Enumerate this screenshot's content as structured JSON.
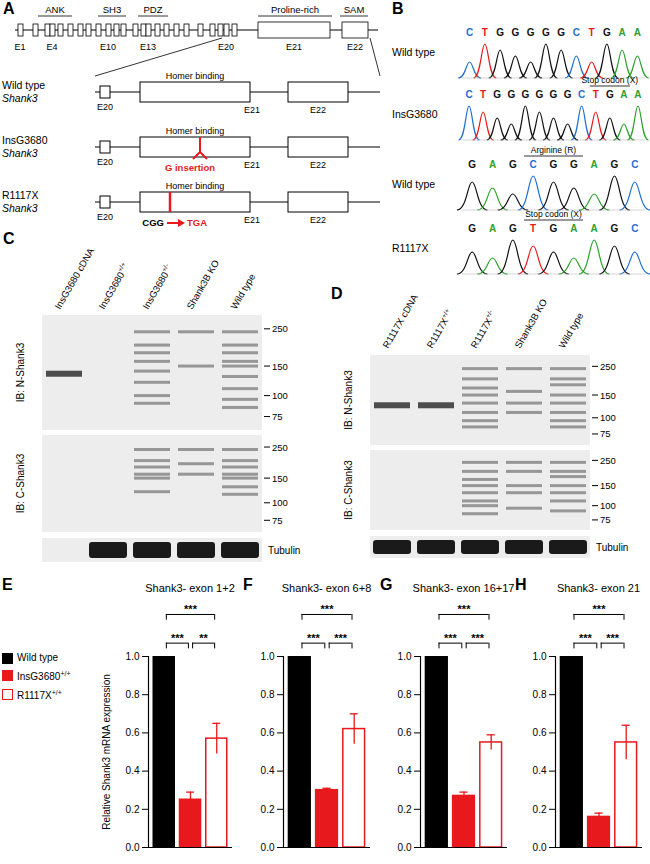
{
  "figure": {
    "A": {
      "letter": "A",
      "domains": [
        "ANK",
        "SH3",
        "PDZ",
        "Proline-rich",
        "SAM"
      ],
      "exons": [
        "E1",
        "E4",
        "E10",
        "E13",
        "E20",
        "E21",
        "E22"
      ],
      "zoom_exons": [
        "E20",
        "E21",
        "E22"
      ],
      "region": "Homer binding",
      "rows": [
        {
          "name": "Wild type",
          "gene": "Shank3"
        },
        {
          "name": "InsG3680",
          "gene": "Shank3",
          "mutation": "G insertion"
        },
        {
          "name": "R1117X",
          "gene": "Shank3",
          "from": "CGG",
          "to": "TGA"
        }
      ]
    },
    "B": {
      "letter": "B",
      "traces": [
        {
          "name": "Wild type",
          "bases": "CTGGGGGCTGAA"
        },
        {
          "name": "InsG3680",
          "bases": "CTGGGGGGCTGAA",
          "codon": "Stop codon (X)",
          "codon_start": 9
        },
        {
          "name": "Wild type",
          "bases": "GAGCGGAGC",
          "codon": "Arginine (R)",
          "codon_start": 3
        },
        {
          "name": "R1117X",
          "bases": "GAGTGAAGC",
          "codon": "Stop codon (X)",
          "codon_start": 3
        }
      ]
    },
    "C": {
      "letter": "C",
      "lanes": [
        "InsG3680 cDNA",
        "InsG3680+/+",
        "InsG3680+/-",
        "Shank3B KO",
        "Wild type"
      ],
      "markers": [
        250,
        150,
        100,
        75
      ],
      "blots": [
        {
          "label": "IB: N-Shank3",
          "bands": [
            [
              135
            ],
            [],
            [
              240,
              200,
              180,
              160,
              140,
              120,
              100,
              90
            ],
            [
              240,
              150
            ],
            [
              240,
              200,
              180,
              160,
              150,
              130,
              110,
              95,
              85
            ]
          ]
        },
        {
          "label": "IB: C-Shank3",
          "bands": [
            [],
            [],
            [
              240,
              200,
              180,
              160,
              150,
              120
            ],
            [
              240,
              190,
              160
            ],
            [
              240,
              200,
              180,
              160,
              150,
              130,
              115
            ]
          ]
        }
      ],
      "loading": {
        "label": "Tubulin",
        "present": [
          false,
          true,
          true,
          true,
          true
        ]
      }
    },
    "D": {
      "letter": "D",
      "lanes": [
        "R1117X cDNA",
        "R1117X+/+",
        "R1117X+/-",
        "Shank3B KO",
        "Wild type"
      ],
      "markers": [
        250,
        150,
        100,
        75
      ],
      "blots": [
        {
          "label": "IB: N-Shank3",
          "bands": [
            [
              125
            ],
            [
              125
            ],
            [
              240,
              200,
              170,
              150,
              130,
              110,
              95,
              85
            ],
            [
              240,
              160,
              130,
              110
            ],
            [
              240,
              200,
              180,
              150,
              130,
              110,
              95,
              85
            ]
          ]
        },
        {
          "label": "IB: C-Shank3",
          "bands": [
            [],
            [],
            [
              240,
              200,
              170,
              150,
              130,
              110,
              100,
              85
            ],
            [
              240,
              200,
              150,
              130,
              95
            ],
            [
              240,
              200,
              180,
              150,
              130,
              110,
              90
            ]
          ]
        }
      ],
      "loading": {
        "label": "Tubulin",
        "present": [
          true,
          true,
          true,
          true,
          true
        ]
      }
    }
  },
  "chart_data": [
    {
      "type": "bar",
      "letter": "E",
      "title": "Shank3- exon 1+2",
      "ylabel": "Relative Shank3 mRNA expression",
      "legend": "left",
      "categories": [
        null
      ],
      "series": [
        {
          "name": "Wild type",
          "color": "#000000",
          "values": [
            1.0
          ],
          "errors": [
            null
          ]
        },
        {
          "name": "InsG3680+/+",
          "color": "#e8191c",
          "values": [
            0.25
          ],
          "errors": [
            0.04
          ]
        },
        {
          "name": "R1117X+/+",
          "color": "#e8191c",
          "marker": "hollow",
          "values": [
            0.57
          ],
          "errors": [
            0.08
          ]
        }
      ],
      "ylim": [
        0,
        1.0
      ],
      "yticks": [
        {
          "value": 0,
          "label": "0.0"
        },
        {
          "value": 0.2,
          "label": "0.2"
        },
        {
          "value": 0.4,
          "label": "0.4"
        },
        {
          "value": 0.6,
          "label": "0.6"
        },
        {
          "value": 0.8,
          "label": "0.8"
        },
        {
          "value": 1.0,
          "label": "1.0"
        }
      ],
      "significance": [
        {
          "from": 0,
          "to": 1,
          "label": "***"
        },
        {
          "from": 1,
          "to": 2,
          "label": "**"
        },
        {
          "from": 0,
          "to": 2,
          "label": "***"
        }
      ]
    },
    {
      "type": "bar",
      "letter": "F",
      "title": "Shank3- exon 6+8",
      "categories": [
        null
      ],
      "series": [
        {
          "name": "Wild type",
          "color": "#000000",
          "values": [
            1.0
          ],
          "errors": [
            null
          ]
        },
        {
          "name": "InsG3680+/+",
          "color": "#e8191c",
          "values": [
            0.3
          ],
          "errors": [
            0.01
          ]
        },
        {
          "name": "R1117X+/+",
          "color": "#e8191c",
          "marker": "hollow",
          "values": [
            0.62
          ],
          "errors": [
            0.08
          ]
        }
      ],
      "ylim": [
        0,
        1.0
      ],
      "yticks": [
        {
          "value": 0,
          "label": "0.0"
        },
        {
          "value": 0.2,
          "label": "0.2"
        },
        {
          "value": 0.4,
          "label": "0.4"
        },
        {
          "value": 0.6,
          "label": "0.6"
        },
        {
          "value": 0.8,
          "label": "0.8"
        },
        {
          "value": 1.0,
          "label": "1.0"
        }
      ],
      "significance": [
        {
          "from": 0,
          "to": 1,
          "label": "***"
        },
        {
          "from": 1,
          "to": 2,
          "label": "***"
        },
        {
          "from": 0,
          "to": 2,
          "label": "***"
        }
      ]
    },
    {
      "type": "bar",
      "letter": "G",
      "title": "Shank3- exon 16+17",
      "categories": [
        null
      ],
      "series": [
        {
          "name": "Wild type",
          "color": "#000000",
          "values": [
            1.0
          ],
          "errors": [
            null
          ]
        },
        {
          "name": "InsG3680+/+",
          "color": "#e8191c",
          "values": [
            0.27
          ],
          "errors": [
            0.02
          ]
        },
        {
          "name": "R1117X+/+",
          "color": "#e8191c",
          "marker": "hollow",
          "values": [
            0.55
          ],
          "errors": [
            0.04
          ]
        }
      ],
      "ylim": [
        0,
        1.0
      ],
      "yticks": [
        {
          "value": 0,
          "label": "0.0"
        },
        {
          "value": 0.2,
          "label": "0.2"
        },
        {
          "value": 0.4,
          "label": "0.4"
        },
        {
          "value": 0.6,
          "label": "0.6"
        },
        {
          "value": 0.8,
          "label": "0.8"
        },
        {
          "value": 1.0,
          "label": "1.0"
        }
      ],
      "significance": [
        {
          "from": 0,
          "to": 1,
          "label": "***"
        },
        {
          "from": 1,
          "to": 2,
          "label": "***"
        },
        {
          "from": 0,
          "to": 2,
          "label": "***"
        }
      ]
    },
    {
      "type": "bar",
      "letter": "H",
      "title": "Shank3- exon 21",
      "categories": [
        null
      ],
      "series": [
        {
          "name": "Wild type",
          "color": "#000000",
          "values": [
            1.0
          ],
          "errors": [
            null
          ]
        },
        {
          "name": "InsG3680+/+",
          "color": "#e8191c",
          "values": [
            0.16
          ],
          "errors": [
            0.02
          ]
        },
        {
          "name": "R1117X+/+",
          "color": "#e8191c",
          "marker": "hollow",
          "values": [
            0.55
          ],
          "errors": [
            0.09
          ]
        }
      ],
      "ylim": [
        0,
        1.0
      ],
      "yticks": [
        {
          "value": 0,
          "label": "0.0"
        },
        {
          "value": 0.2,
          "label": "0.2"
        },
        {
          "value": 0.4,
          "label": "0.4"
        },
        {
          "value": 0.6,
          "label": "0.6"
        },
        {
          "value": 0.8,
          "label": "0.8"
        },
        {
          "value": 1.0,
          "label": "1.0"
        }
      ],
      "significance": [
        {
          "from": 0,
          "to": 1,
          "label": "***"
        },
        {
          "from": 1,
          "to": 2,
          "label": "***"
        },
        {
          "from": 0,
          "to": 2,
          "label": "***"
        }
      ]
    }
  ]
}
